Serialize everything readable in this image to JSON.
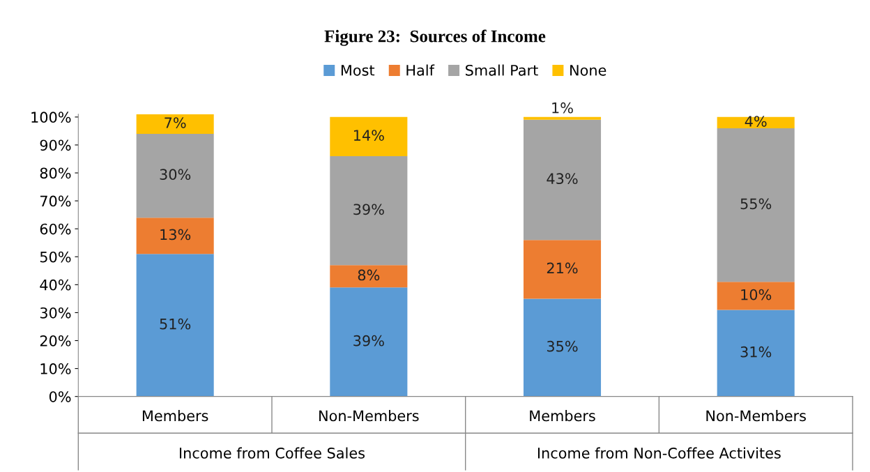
{
  "chart_data": {
    "type": "bar",
    "title": "Figure 23:  Sources of Income",
    "categories": [
      "Members",
      "Non-Members",
      "Members",
      "Non-Members"
    ],
    "annotations": [
      "Income from Coffee Sales",
      "Income from Non-Coffee Activites"
    ],
    "stacked": true,
    "series": [
      {
        "name": "Most",
        "color": "#5b9bd5",
        "values": [
          51,
          39,
          35,
          31
        ],
        "value_labels": [
          "51%",
          "39%",
          "35%",
          "31%"
        ]
      },
      {
        "name": "Half",
        "color": "#ed7d31",
        "values": [
          13,
          8,
          21,
          10
        ],
        "value_labels": [
          "13%",
          "8%",
          "21%",
          "10%"
        ]
      },
      {
        "name": "Small Part",
        "color": "#a5a5a5",
        "values": [
          30,
          39,
          43,
          55
        ],
        "value_labels": [
          "30%",
          "39%",
          "43%",
          "55%"
        ]
      },
      {
        "name": "None",
        "color": "#ffc000",
        "values": [
          7,
          14,
          1,
          4
        ],
        "value_labels": [
          "7%",
          "14%",
          "1%",
          "4%"
        ]
      }
    ],
    "ylim": [
      0,
      101
    ],
    "yticks": [
      {
        "value": 0,
        "label": "0%"
      },
      {
        "value": 10,
        "label": "10%"
      },
      {
        "value": 20,
        "label": "20%"
      },
      {
        "value": 30,
        "label": "30%"
      },
      {
        "value": 40,
        "label": "40%"
      },
      {
        "value": 50,
        "label": "50%"
      },
      {
        "value": 60,
        "label": "60%"
      },
      {
        "value": 70,
        "label": "70%"
      },
      {
        "value": 80,
        "label": "80%"
      },
      {
        "value": 90,
        "label": "90%"
      },
      {
        "value": 100,
        "label": "100%"
      }
    ],
    "grid": false,
    "legend": "top"
  }
}
